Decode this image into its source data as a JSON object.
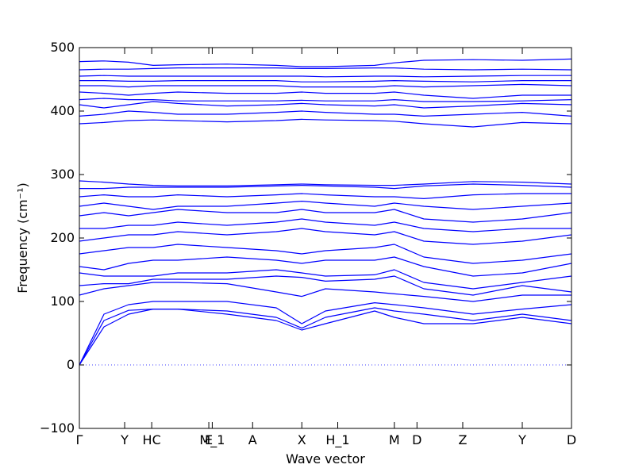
{
  "chart_data": {
    "type": "line",
    "title": "",
    "xlabel": "Wave vector",
    "ylabel": "Frequency (cm⁻¹)",
    "ylim": [
      -100,
      500
    ],
    "yticks": [
      -100,
      0,
      100,
      200,
      300,
      400,
      500
    ],
    "grid": false,
    "legend": "none",
    "colors": {
      "bands": "#0000ff",
      "zero_line": "#0000ff",
      "frame": "#000000"
    },
    "xticks": [
      {
        "label": "Γ",
        "k": 0.0
      },
      {
        "label": "Y",
        "k": 0.092
      },
      {
        "label": "HC",
        "k": 0.147
      },
      {
        "label": "E",
        "k": 0.263
      },
      {
        "label": "M_1",
        "k": 0.27
      },
      {
        "label": "A",
        "k": 0.352
      },
      {
        "label": "X",
        "k": 0.452
      },
      {
        "label": "H_1",
        "k": 0.525
      },
      {
        "label": "M",
        "k": 0.64
      },
      {
        "label": "D",
        "k": 0.686
      },
      {
        "label": "Z",
        "k": 0.779
      },
      {
        "label": "Y",
        "k": 0.9
      },
      {
        "label": "D",
        "k": 1.0
      }
    ],
    "series": [
      {
        "k": [
          0,
          0.05,
          0.1,
          0.15,
          0.2,
          0.3,
          0.4,
          0.452,
          0.5,
          0.6,
          0.64,
          0.7,
          0.8,
          0.9,
          1.0
        ],
        "values": [
          0,
          60,
          80,
          88,
          88,
          80,
          70,
          55,
          65,
          85,
          75,
          65,
          65,
          75,
          65
        ]
      },
      {
        "k": [
          0,
          0.05,
          0.1,
          0.15,
          0.2,
          0.3,
          0.4,
          0.452,
          0.5,
          0.6,
          0.64,
          0.7,
          0.8,
          0.9,
          1.0
        ],
        "values": [
          0,
          70,
          86,
          88,
          88,
          85,
          75,
          58,
          75,
          90,
          85,
          80,
          70,
          80,
          70
        ]
      },
      {
        "k": [
          0,
          0.05,
          0.1,
          0.15,
          0.2,
          0.3,
          0.4,
          0.452,
          0.5,
          0.6,
          0.64,
          0.7,
          0.8,
          0.9,
          1.0
        ],
        "values": [
          0,
          80,
          95,
          100,
          100,
          100,
          90,
          65,
          85,
          98,
          95,
          90,
          80,
          88,
          95
        ]
      },
      {
        "k": [
          0,
          0.05,
          0.1,
          0.15,
          0.2,
          0.3,
          0.4,
          0.452,
          0.5,
          0.6,
          0.64,
          0.7,
          0.8,
          0.9,
          1.0
        ],
        "values": [
          110,
          120,
          125,
          130,
          130,
          128,
          115,
          108,
          120,
          115,
          112,
          108,
          100,
          110,
          110
        ]
      },
      {
        "k": [
          0,
          0.05,
          0.1,
          0.15,
          0.2,
          0.3,
          0.4,
          0.452,
          0.5,
          0.6,
          0.64,
          0.7,
          0.8,
          0.9,
          1.0
        ],
        "values": [
          125,
          128,
          128,
          135,
          135,
          135,
          140,
          138,
          132,
          135,
          140,
          120,
          110,
          125,
          115
        ]
      },
      {
        "k": [
          0,
          0.05,
          0.1,
          0.15,
          0.2,
          0.3,
          0.4,
          0.452,
          0.5,
          0.6,
          0.64,
          0.7,
          0.8,
          0.9,
          1.0
        ],
        "values": [
          145,
          140,
          140,
          140,
          145,
          145,
          150,
          145,
          140,
          142,
          150,
          130,
          120,
          130,
          140
        ]
      },
      {
        "k": [
          0,
          0.05,
          0.1,
          0.15,
          0.2,
          0.3,
          0.4,
          0.452,
          0.5,
          0.6,
          0.64,
          0.7,
          0.8,
          0.9,
          1.0
        ],
        "values": [
          155,
          150,
          160,
          165,
          165,
          170,
          165,
          160,
          165,
          165,
          170,
          155,
          140,
          145,
          160
        ]
      },
      {
        "k": [
          0,
          0.05,
          0.1,
          0.15,
          0.2,
          0.3,
          0.4,
          0.452,
          0.5,
          0.6,
          0.64,
          0.7,
          0.8,
          0.9,
          1.0
        ],
        "values": [
          175,
          180,
          185,
          185,
          190,
          185,
          180,
          175,
          180,
          185,
          190,
          170,
          160,
          165,
          175
        ]
      },
      {
        "k": [
          0,
          0.05,
          0.1,
          0.15,
          0.2,
          0.3,
          0.4,
          0.452,
          0.5,
          0.6,
          0.64,
          0.7,
          0.8,
          0.9,
          1.0
        ],
        "values": [
          195,
          200,
          205,
          205,
          210,
          205,
          210,
          215,
          210,
          205,
          210,
          195,
          190,
          195,
          205
        ]
      },
      {
        "k": [
          0,
          0.05,
          0.1,
          0.15,
          0.2,
          0.3,
          0.4,
          0.452,
          0.5,
          0.6,
          0.64,
          0.7,
          0.8,
          0.9,
          1.0
        ],
        "values": [
          215,
          215,
          220,
          220,
          225,
          220,
          225,
          230,
          225,
          220,
          225,
          215,
          210,
          215,
          215
        ]
      },
      {
        "k": [
          0,
          0.05,
          0.1,
          0.15,
          0.2,
          0.3,
          0.4,
          0.452,
          0.5,
          0.6,
          0.64,
          0.7,
          0.8,
          0.9,
          1.0
        ],
        "values": [
          235,
          240,
          235,
          240,
          245,
          240,
          240,
          245,
          240,
          240,
          245,
          230,
          225,
          230,
          240
        ]
      },
      {
        "k": [
          0,
          0.05,
          0.1,
          0.15,
          0.2,
          0.3,
          0.4,
          0.452,
          0.5,
          0.6,
          0.64,
          0.7,
          0.8,
          0.9,
          1.0
        ],
        "values": [
          250,
          255,
          250,
          245,
          250,
          250,
          255,
          258,
          255,
          250,
          255,
          250,
          245,
          250,
          255
        ]
      },
      {
        "k": [
          0,
          0.05,
          0.1,
          0.15,
          0.2,
          0.3,
          0.4,
          0.452,
          0.5,
          0.6,
          0.64,
          0.7,
          0.8,
          0.9,
          1.0
        ],
        "values": [
          265,
          268,
          265,
          265,
          268,
          265,
          268,
          270,
          268,
          265,
          265,
          262,
          268,
          270,
          270
        ]
      },
      {
        "k": [
          0,
          0.05,
          0.1,
          0.15,
          0.2,
          0.3,
          0.4,
          0.452,
          0.5,
          0.6,
          0.64,
          0.7,
          0.8,
          0.9,
          1.0
        ],
        "values": [
          278,
          278,
          280,
          280,
          280,
          280,
          282,
          283,
          282,
          280,
          278,
          282,
          285,
          283,
          280
        ]
      },
      {
        "k": [
          0,
          0.05,
          0.1,
          0.15,
          0.2,
          0.3,
          0.4,
          0.452,
          0.5,
          0.6,
          0.64,
          0.7,
          0.8,
          0.9,
          1.0
        ],
        "values": [
          290,
          288,
          285,
          283,
          282,
          282,
          284,
          285,
          284,
          283,
          283,
          285,
          289,
          288,
          285
        ]
      },
      {
        "k": [
          0,
          0.05,
          0.1,
          0.15,
          0.2,
          0.3,
          0.4,
          0.452,
          0.5,
          0.6,
          0.64,
          0.7,
          0.8,
          0.9,
          1.0
        ],
        "values": [
          380,
          382,
          385,
          386,
          385,
          383,
          385,
          387,
          386,
          385,
          384,
          380,
          375,
          382,
          380
        ]
      },
      {
        "k": [
          0,
          0.05,
          0.1,
          0.15,
          0.2,
          0.3,
          0.4,
          0.452,
          0.5,
          0.6,
          0.64,
          0.7,
          0.8,
          0.9,
          1.0
        ],
        "values": [
          392,
          395,
          400,
          398,
          395,
          395,
          398,
          400,
          398,
          395,
          395,
          392,
          395,
          398,
          392
        ]
      },
      {
        "k": [
          0,
          0.05,
          0.1,
          0.15,
          0.2,
          0.3,
          0.4,
          0.452,
          0.5,
          0.6,
          0.64,
          0.7,
          0.8,
          0.9,
          1.0
        ],
        "values": [
          410,
          405,
          410,
          415,
          412,
          408,
          410,
          412,
          410,
          408,
          410,
          405,
          408,
          412,
          410
        ]
      },
      {
        "k": [
          0,
          0.05,
          0.1,
          0.15,
          0.2,
          0.3,
          0.4,
          0.452,
          0.5,
          0.6,
          0.64,
          0.7,
          0.8,
          0.9,
          1.0
        ],
        "values": [
          418,
          420,
          418,
          418,
          416,
          416,
          416,
          417,
          416,
          416,
          418,
          415,
          415,
          416,
          418
        ]
      },
      {
        "k": [
          0,
          0.05,
          0.1,
          0.15,
          0.2,
          0.3,
          0.4,
          0.452,
          0.5,
          0.6,
          0.64,
          0.7,
          0.8,
          0.9,
          1.0
        ],
        "values": [
          430,
          428,
          425,
          428,
          430,
          428,
          428,
          430,
          428,
          428,
          430,
          425,
          420,
          425,
          425
        ]
      },
      {
        "k": [
          0,
          0.05,
          0.1,
          0.15,
          0.2,
          0.3,
          0.4,
          0.452,
          0.5,
          0.6,
          0.64,
          0.7,
          0.8,
          0.9,
          1.0
        ],
        "values": [
          440,
          440,
          438,
          440,
          440,
          440,
          440,
          438,
          438,
          438,
          440,
          438,
          440,
          442,
          440
        ]
      },
      {
        "k": [
          0,
          0.05,
          0.1,
          0.15,
          0.2,
          0.3,
          0.4,
          0.452,
          0.5,
          0.6,
          0.64,
          0.7,
          0.8,
          0.9,
          1.0
        ],
        "values": [
          448,
          448,
          447,
          447,
          448,
          448,
          448,
          446,
          446,
          447,
          448,
          447,
          446,
          448,
          448
        ]
      },
      {
        "k": [
          0,
          0.05,
          0.1,
          0.15,
          0.2,
          0.3,
          0.4,
          0.452,
          0.5,
          0.6,
          0.64,
          0.7,
          0.8,
          0.9,
          1.0
        ],
        "values": [
          455,
          456,
          455,
          455,
          455,
          455,
          455,
          455,
          454,
          455,
          455,
          454,
          455,
          456,
          456
        ]
      },
      {
        "k": [
          0,
          0.05,
          0.1,
          0.15,
          0.2,
          0.3,
          0.4,
          0.452,
          0.5,
          0.6,
          0.64,
          0.7,
          0.8,
          0.9,
          1.0
        ],
        "values": [
          465,
          466,
          466,
          467,
          468,
          468,
          468,
          467,
          467,
          468,
          468,
          466,
          465,
          466,
          465
        ]
      },
      {
        "k": [
          0,
          0.05,
          0.1,
          0.15,
          0.2,
          0.3,
          0.4,
          0.452,
          0.5,
          0.6,
          0.64,
          0.7,
          0.8,
          0.9,
          1.0
        ],
        "values": [
          478,
          479,
          477,
          472,
          473,
          474,
          472,
          470,
          470,
          472,
          476,
          480,
          481,
          480,
          482
        ]
      }
    ]
  }
}
